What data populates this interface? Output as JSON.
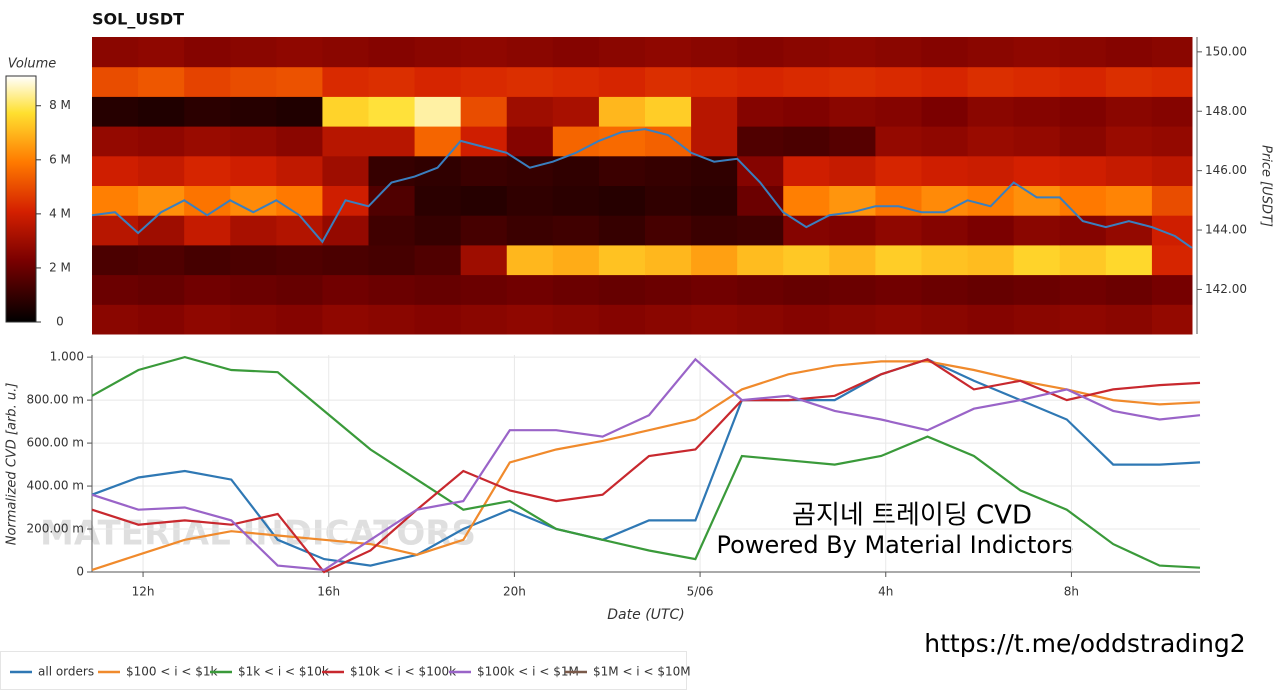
{
  "chart_data": [
    {
      "type": "heatmap",
      "title": "SOL_USDT",
      "x_bins": [
        10.9,
        11.9,
        12.9,
        13.9,
        14.9,
        15.9,
        16.9,
        17.9,
        18.9,
        19.9,
        20.9,
        21.9,
        22.9,
        23.9,
        24.9,
        25.9,
        26.9,
        27.9,
        28.9,
        29.9,
        30.9,
        31.9,
        32.9,
        33.9,
        34.77
      ],
      "y_bins": [
        140.5,
        141.5,
        142.5,
        143.5,
        144.5,
        145.5,
        146.5,
        147.5,
        148.5,
        149.5,
        150.5
      ],
      "z": [
        [
          2600000,
          2500000,
          2700000,
          2600000,
          2500000,
          2700000,
          2600000,
          2500000,
          2600000,
          2700000,
          2600000,
          2500000,
          2600000,
          2700000,
          2600000,
          2500000,
          2600000,
          2700000,
          2600000,
          2500000,
          2600000,
          2700000,
          2600000,
          2800000
        ],
        [
          2000000,
          1900000,
          2100000,
          2000000,
          1900000,
          2100000,
          2000000,
          1900000,
          2000000,
          2100000,
          2000000,
          1900000,
          2000000,
          2100000,
          2000000,
          1900000,
          2000000,
          2100000,
          2000000,
          1900000,
          2000000,
          2100000,
          2000000,
          2200000
        ],
        [
          1400000,
          1500000,
          1300000,
          1400000,
          1500000,
          1400000,
          1300000,
          1500000,
          3000000,
          7000000,
          6800000,
          7200000,
          7000000,
          6600000,
          7100000,
          7300000,
          7000000,
          7400000,
          7200000,
          7100000,
          7500000,
          7300000,
          7600000,
          4200000
        ],
        [
          3500000,
          3000000,
          3800000,
          3200000,
          3400000,
          2800000,
          1200000,
          1000000,
          1300000,
          1100000,
          1200000,
          1000000,
          1300000,
          1100000,
          1200000,
          2500000,
          2400000,
          2700000,
          2500000,
          2300000,
          2600000,
          2500000,
          2800000,
          4000000
        ],
        [
          6000000,
          6300000,
          5800000,
          6200000,
          5900000,
          4000000,
          1500000,
          800000,
          700000,
          900000,
          800000,
          700000,
          900000,
          800000,
          2000000,
          6000000,
          6400000,
          5800000,
          6200000,
          6000000,
          6300000,
          5900000,
          6100000,
          5000000
        ],
        [
          4000000,
          3800000,
          4200000,
          4000000,
          3700000,
          3000000,
          1000000,
          900000,
          1100000,
          1000000,
          900000,
          1100000,
          1000000,
          900000,
          2500000,
          4000000,
          3800000,
          4200000,
          4000000,
          3900000,
          4100000,
          4000000,
          3800000,
          3600000
        ],
        [
          2800000,
          2700000,
          2900000,
          2800000,
          2600000,
          3500000,
          3500000,
          5500000,
          4000000,
          2500000,
          5500000,
          5600000,
          5400000,
          3500000,
          1500000,
          1400000,
          1600000,
          2800000,
          2700000,
          2900000,
          2800000,
          2600000,
          2900000,
          2800000
        ],
        [
          700000,
          600000,
          800000,
          700000,
          600000,
          7500000,
          7800000,
          8500000,
          5000000,
          3000000,
          3200000,
          7000000,
          7400000,
          3500000,
          2500000,
          2400000,
          2600000,
          2500000,
          2300000,
          2600000,
          2500000,
          2400000,
          2600000,
          2500000
        ],
        [
          5000000,
          5200000,
          4800000,
          5000000,
          5100000,
          4300000,
          4400000,
          4200000,
          4300000,
          4400000,
          4300000,
          4200000,
          4400000,
          4300000,
          4200000,
          4300000,
          4400000,
          4300000,
          4200000,
          4400000,
          4300000,
          4200000,
          4400000,
          4300000
        ],
        [
          2600000,
          2700000,
          2500000,
          2600000,
          2700000,
          2600000,
          2500000,
          2600000,
          2700000,
          2600000,
          2500000,
          2600000,
          2700000,
          2600000,
          2500000,
          2600000,
          2700000,
          2600000,
          2500000,
          2600000,
          2700000,
          2600000,
          2500000,
          2600000
        ]
      ],
      "colorbar": {
        "label": "Volume",
        "lim": [
          0,
          9100000
        ],
        "ticks": [
          0,
          {
            "value": 2000000,
            "label": "2 M"
          },
          {
            "value": 4000000,
            "label": "4 M"
          },
          {
            "value": 6000000,
            "label": "6 M"
          },
          {
            "value": 8000000,
            "label": "8 M"
          }
        ]
      },
      "xlim": [
        10.9,
        34.77
      ],
      "y2lim": [
        140.5,
        150.5
      ],
      "y2ticks": [
        {
          "value": 142,
          "label": "142.00"
        },
        {
          "value": 144,
          "label": "144.00"
        },
        {
          "value": 146,
          "label": "146.00"
        },
        {
          "value": 148,
          "label": "148.00"
        },
        {
          "value": 150,
          "label": "150.00"
        }
      ],
      "y2label": "Price [USDT]",
      "x": [
        10.9,
        11.4,
        11.9,
        12.4,
        12.9,
        13.4,
        13.9,
        14.4,
        14.9,
        15.4,
        15.9,
        16.4,
        16.9,
        17.4,
        17.9,
        18.4,
        18.9,
        19.4,
        19.9,
        20.4,
        20.9,
        21.4,
        21.9,
        22.4,
        22.9,
        23.4,
        23.9,
        24.4,
        24.9,
        25.4,
        25.9,
        26.4,
        26.9,
        27.4,
        27.9,
        28.4,
        28.9,
        29.4,
        29.9,
        30.4,
        30.9,
        31.4,
        31.9,
        32.4,
        32.9,
        33.4,
        33.9,
        34.4,
        34.77
      ],
      "series": [
        {
          "color": "#3a7fbf",
          "axis": "y2",
          "values": [
            144.5,
            144.6,
            143.9,
            144.6,
            145.0,
            144.5,
            145.0,
            144.6,
            145.0,
            144.5,
            143.6,
            145.0,
            144.8,
            145.6,
            145.8,
            146.1,
            147.0,
            146.8,
            146.6,
            146.1,
            146.3,
            146.6,
            147.0,
            147.3,
            147.4,
            147.2,
            146.6,
            146.3,
            146.4,
            145.6,
            144.6,
            144.1,
            144.5,
            144.6,
            144.8,
            144.8,
            144.6,
            144.6,
            145.0,
            144.8,
            145.6,
            145.1,
            145.1,
            144.3,
            144.1,
            144.3,
            144.1,
            143.8,
            143.4
          ]
        }
      ]
    },
    {
      "type": "line",
      "x": [
        10.9,
        11.9,
        12.9,
        13.9,
        14.9,
        15.9,
        16.9,
        17.9,
        18.9,
        19.9,
        20.9,
        21.9,
        22.9,
        23.9,
        24.9,
        25.9,
        26.9,
        27.9,
        28.9,
        29.9,
        30.9,
        31.9,
        32.9,
        33.9,
        34.77
      ],
      "xlim": [
        10.9,
        34.77
      ],
      "xticks": [
        {
          "value": 12,
          "label": "12h"
        },
        {
          "value": 16,
          "label": "16h"
        },
        {
          "value": 20,
          "label": "20h"
        },
        {
          "value": 24,
          "label": "5/06"
        },
        {
          "value": 28,
          "label": "4h"
        },
        {
          "value": 32,
          "label": "8h"
        }
      ],
      "ylim": [
        0,
        1.01
      ],
      "yticks": [
        0,
        {
          "value": 0.2,
          "label": "200.00 m"
        },
        {
          "value": 0.4,
          "label": "400.00 m"
        },
        {
          "value": 0.6,
          "label": "600.00 m"
        },
        {
          "value": 0.8,
          "label": "800.00 m"
        },
        {
          "value": 1,
          "label": "1.000"
        }
      ],
      "xlabel": "Date (UTC)",
      "ylabel": "Normalized CVD [arb. u.]",
      "grid": true,
      "legend": "bottom-left",
      "series": [
        {
          "name": "all orders",
          "color": "#2f78b4",
          "values": [
            0.36,
            0.44,
            0.47,
            0.43,
            0.15,
            0.06,
            0.03,
            0.08,
            0.2,
            0.29,
            0.2,
            0.15,
            0.24,
            0.24,
            0.8,
            0.8,
            0.8,
            0.92,
            0.99,
            0.89,
            0.8,
            0.71,
            0.5,
            0.5,
            0.51
          ]
        },
        {
          "name": "$100 < i < $1k",
          "color": "#f08a2c",
          "values": [
            0.01,
            0.08,
            0.15,
            0.19,
            0.17,
            0.15,
            0.13,
            0.08,
            0.15,
            0.51,
            0.57,
            0.61,
            0.66,
            0.71,
            0.85,
            0.92,
            0.96,
            0.98,
            0.98,
            0.94,
            0.89,
            0.85,
            0.8,
            0.78,
            0.79
          ]
        },
        {
          "name": "$1k < i < $10k",
          "color": "#3a9a3a",
          "values": [
            0.82,
            0.94,
            1.0,
            0.94,
            0.93,
            0.75,
            0.57,
            0.43,
            0.29,
            0.33,
            0.2,
            0.15,
            0.1,
            0.06,
            0.54,
            0.52,
            0.5,
            0.54,
            0.63,
            0.54,
            0.38,
            0.29,
            0.13,
            0.03,
            0.02
          ]
        },
        {
          "name": "$10k < i < $100k",
          "color": "#c8282e",
          "values": [
            0.29,
            0.22,
            0.24,
            0.22,
            0.27,
            0.0,
            0.1,
            0.29,
            0.47,
            0.38,
            0.33,
            0.36,
            0.54,
            0.57,
            0.8,
            0.8,
            0.82,
            0.92,
            0.99,
            0.85,
            0.89,
            0.8,
            0.85,
            0.87,
            0.88
          ]
        },
        {
          "name": "$100k < i < $1M",
          "color": "#9a64c8",
          "values": [
            0.36,
            0.29,
            0.3,
            0.24,
            0.03,
            0.01,
            0.15,
            0.29,
            0.33,
            0.66,
            0.66,
            0.63,
            0.73,
            0.99,
            0.8,
            0.82,
            0.75,
            0.71,
            0.66,
            0.76,
            0.8,
            0.85,
            0.75,
            0.71,
            0.73
          ]
        },
        {
          "name": "$1M < i < $10M",
          "color": "#7a5a4a",
          "values": [
            null,
            null,
            null,
            null,
            null,
            null,
            null,
            null,
            null,
            null,
            null,
            null,
            null,
            null,
            null,
            null,
            null,
            null,
            null,
            null,
            null,
            null,
            null,
            null,
            null
          ]
        }
      ],
      "annotations": [
        "MATERIAL INDICATORS",
        "곰지네 트레이딩 CVD",
        "Powered By Material Indictors",
        "https://t.me/oddstrading2"
      ]
    }
  ]
}
